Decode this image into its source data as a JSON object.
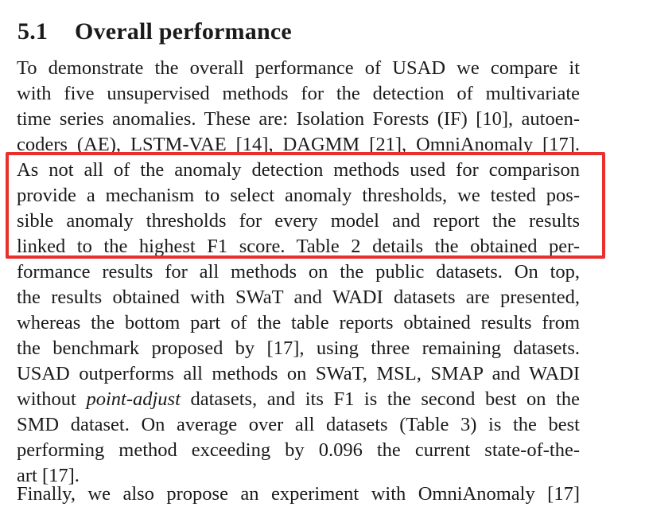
{
  "section": {
    "number": "5.1",
    "title": "Overall performance"
  },
  "paragraph": {
    "lines": [
      "To demonstrate the overall performance of USAD we compare it",
      "with five unsupervised methods for the detection of multivariate",
      "time series anomalies. These are: Isolation Forests (IF) [10], autoen-",
      "coders (AE), LSTM-VAE [14], DAGMM [21], OmniAnomaly [17].",
      "As not all of the anomaly detection methods used for comparison",
      "provide a mechanism to select anomaly thresholds, we tested pos-",
      "sible anomaly thresholds for every model and report the results",
      "linked to the highest F1 score. Table 2 details the obtained per-",
      "formance results for all methods on the public datasets. On top,",
      "the results obtained with SWaT and WADI datasets are presented,",
      "whereas the bottom part of the table reports obtained results from",
      "the benchmark proposed by [17], using three remaining datasets.",
      "USAD outperforms all methods on SWaT, MSL, SMAP and WADI",
      "without",
      "point-adjust",
      "datasets, and its F1 is the second best on the",
      "SMD dataset. On average over all datasets (Table 3) is the best",
      "performing method exceeding by 0.096 the current state-of-the-",
      "art [17].",
      "Finally, we also propose an experiment with OmniAnomaly [17]"
    ]
  },
  "annotation": {
    "color": "#e8302c",
    "covers_lines": "5-8"
  }
}
